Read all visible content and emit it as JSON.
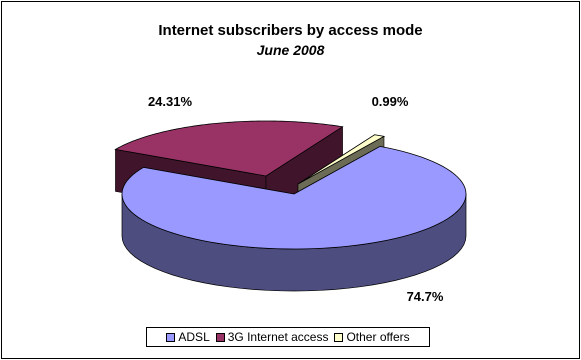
{
  "chart_data": {
    "type": "pie",
    "title": "Internet subscribers by access mode",
    "subtitle": "June 2008",
    "slices": [
      {
        "name": "ADSL",
        "value": 74.7,
        "label": "74.7%",
        "color": "#9999ff"
      },
      {
        "name": "3G Internet access",
        "value": 24.31,
        "label": "24.31%",
        "color": "#993366"
      },
      {
        "name": "Other offers",
        "value": 0.99,
        "label": "0.99%",
        "color": "#ffffcc"
      }
    ],
    "three_d": true,
    "exploded": true,
    "legend_position": "bottom"
  }
}
